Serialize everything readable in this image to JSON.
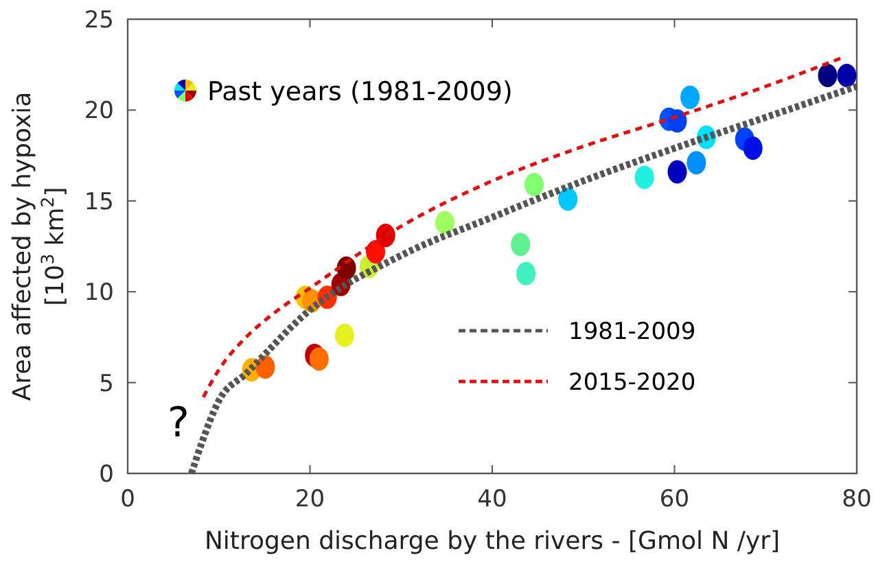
{
  "chart_data": {
    "type": "scatter",
    "xlabel": "Nitrogen discharge by the rivers - [Gmol N /yr]",
    "ylabel": "Area affected by hypoxia\n[10$^{3}$ km$^{2}$]",
    "xlim": [
      0,
      80
    ],
    "ylim": [
      0,
      25
    ],
    "xticks": [
      0,
      20,
      40,
      60,
      80
    ],
    "yticks": [
      0,
      5,
      10,
      15,
      20,
      25
    ],
    "grid": false,
    "legend": "top left",
    "annotations": [
      "?"
    ],
    "series": [
      {
        "name": "Past years (1981-2009)",
        "marker": "circle",
        "x": [
          13.6,
          15.1,
          20.5,
          21.0,
          23.8,
          19.5,
          20.2,
          21.9,
          23.4,
          24.0,
          26.5,
          27.2,
          28.3,
          34.8,
          43.1,
          43.7,
          44.6,
          48.3,
          56.7,
          60.3,
          59.4,
          60.3,
          61.7,
          62.4,
          63.5,
          67.7,
          68.6,
          76.8,
          78.9
        ],
        "values": [
          5.7,
          5.85,
          6.5,
          6.3,
          7.6,
          9.7,
          9.5,
          9.7,
          10.4,
          11.3,
          11.4,
          12.2,
          13.1,
          13.8,
          12.6,
          11.0,
          15.9,
          15.1,
          16.3,
          16.6,
          19.5,
          19.4,
          20.7,
          17.1,
          18.5,
          18.4,
          17.9,
          21.9,
          21.9
        ],
        "colors": [
          "#ffb000",
          "#ff6000",
          "#c00000",
          "#ff7000",
          "#e8f020",
          "#ffc000",
          "#ff9000",
          "#ff3000",
          "#a00000",
          "#800000",
          "#c8f030",
          "#ff1000",
          "#e00000",
          "#a0ff60",
          "#60f090",
          "#40f0c0",
          "#80ff70",
          "#00c8ff",
          "#20f0e0",
          "#0000c0",
          "#0050ff",
          "#0040f0",
          "#00a8ff",
          "#0090ff",
          "#00e0ff",
          "#0040ff",
          "#0010e8",
          "#000080",
          "#0000a8"
        ]
      },
      {
        "name": "1981-2009",
        "type": "line",
        "color": "#555555",
        "line_style": "dotted",
        "x": [
          7,
          8,
          10,
          13,
          20,
          30,
          40,
          50,
          60,
          70,
          80
        ],
        "values": [
          0,
          1.5,
          4.0,
          5.5,
          9.0,
          12.0,
          14.1,
          16.1,
          17.9,
          19.6,
          21.3
        ]
      },
      {
        "name": "2015-2020",
        "type": "line",
        "color": "#dd1111",
        "line_style": "dashed",
        "x": [
          8.3,
          10,
          13,
          16,
          20,
          30,
          40,
          50,
          60,
          70,
          78.5
        ],
        "values": [
          4.2,
          5.7,
          7.5,
          8.8,
          10.2,
          13.6,
          16.1,
          18.0,
          19.6,
          21.3,
          22.9
        ]
      }
    ]
  }
}
